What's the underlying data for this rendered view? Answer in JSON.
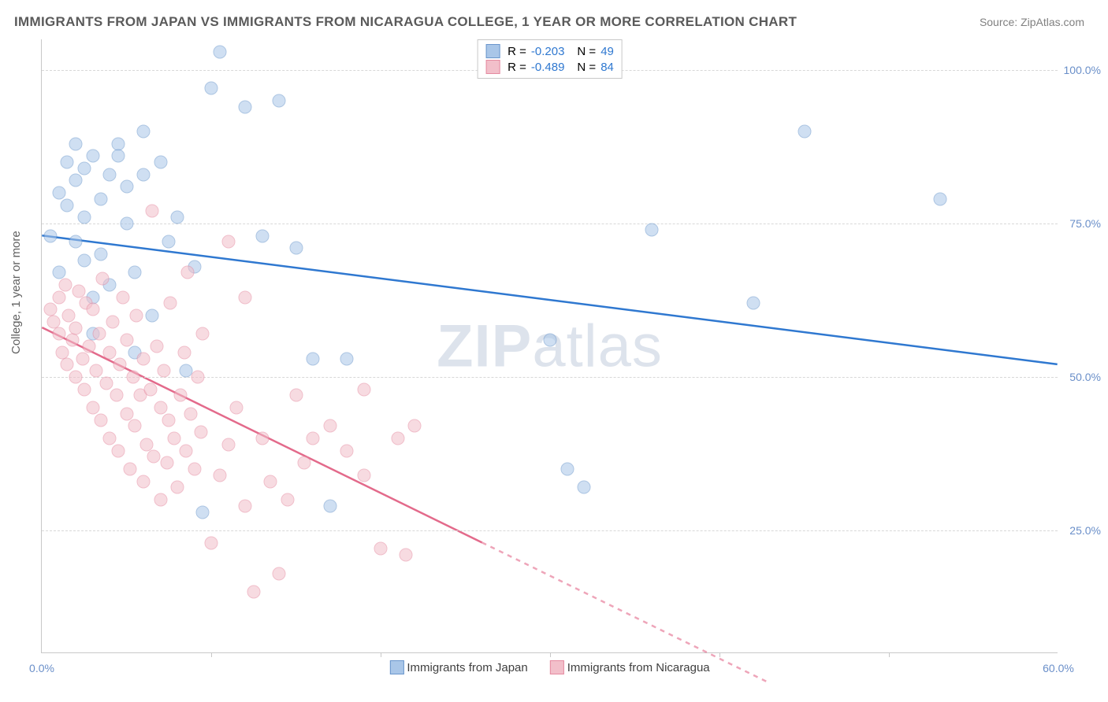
{
  "title": "IMMIGRANTS FROM JAPAN VS IMMIGRANTS FROM NICARAGUA COLLEGE, 1 YEAR OR MORE CORRELATION CHART",
  "source": "Source: ZipAtlas.com",
  "watermark_bold": "ZIP",
  "watermark_rest": "atlas",
  "ylabel": "College, 1 year or more",
  "chart": {
    "type": "scatter",
    "xlim": [
      0,
      60
    ],
    "ylim": [
      5,
      105
    ],
    "ytick_labels": [
      "25.0%",
      "50.0%",
      "75.0%",
      "100.0%"
    ],
    "ytick_vals": [
      25,
      50,
      75,
      100
    ],
    "xtick_labels": [
      "0.0%",
      "60.0%"
    ],
    "xtick_vals": [
      0,
      60
    ],
    "xtick_minor": [
      10,
      20,
      30,
      40,
      50
    ],
    "ytick_color": "#6a8fc9",
    "xtick_color": "#6a8fc9",
    "grid_color": "#d8d8d8",
    "background_color": "#ffffff",
    "marker_radius": 8.5,
    "series": [
      {
        "name": "Immigrants from Japan",
        "fill": "#a9c6e8",
        "stroke": "#6a96cc",
        "line_color": "#2f78d0",
        "line_width": 2.5,
        "R": "-0.203",
        "N": "49",
        "trend": {
          "x1": 0,
          "y1": 73,
          "x2": 60,
          "y2": 52,
          "dash_from_x": null
        },
        "points": [
          [
            0.5,
            73
          ],
          [
            1,
            80
          ],
          [
            1,
            67
          ],
          [
            1.5,
            85
          ],
          [
            1.5,
            78
          ],
          [
            2,
            72
          ],
          [
            2,
            82
          ],
          [
            2,
            88
          ],
          [
            2.5,
            69
          ],
          [
            2.5,
            76
          ],
          [
            2.5,
            84
          ],
          [
            3,
            86
          ],
          [
            3,
            63
          ],
          [
            3,
            57
          ],
          [
            3.5,
            70
          ],
          [
            3.5,
            79
          ],
          [
            4,
            83
          ],
          [
            4,
            65
          ],
          [
            4.5,
            88
          ],
          [
            4.5,
            86
          ],
          [
            5,
            75
          ],
          [
            5,
            81
          ],
          [
            5.5,
            67
          ],
          [
            5.5,
            54
          ],
          [
            6,
            90
          ],
          [
            6,
            83
          ],
          [
            6.5,
            60
          ],
          [
            7,
            85
          ],
          [
            7.5,
            72
          ],
          [
            8,
            76
          ],
          [
            8.5,
            51
          ],
          [
            9,
            68
          ],
          [
            9.5,
            28
          ],
          [
            10,
            97
          ],
          [
            10.5,
            103
          ],
          [
            12,
            94
          ],
          [
            13,
            73
          ],
          [
            14,
            95
          ],
          [
            15,
            71
          ],
          [
            16,
            53
          ],
          [
            17,
            29
          ],
          [
            18,
            53
          ],
          [
            30,
            56
          ],
          [
            31,
            35
          ],
          [
            32,
            32
          ],
          [
            36,
            74
          ],
          [
            42,
            62
          ],
          [
            45,
            90
          ],
          [
            53,
            79
          ]
        ]
      },
      {
        "name": "Immigrants from Nicaragua",
        "fill": "#f2bfca",
        "stroke": "#e58aa0",
        "line_color": "#e36a8b",
        "line_width": 2.5,
        "R": "-0.489",
        "N": "84",
        "trend": {
          "x1": 0,
          "y1": 58,
          "x2": 43,
          "y2": 0,
          "dash_from_x": 26
        },
        "points": [
          [
            0.5,
            61
          ],
          [
            0.7,
            59
          ],
          [
            1,
            57
          ],
          [
            1,
            63
          ],
          [
            1.2,
            54
          ],
          [
            1.4,
            65
          ],
          [
            1.5,
            52
          ],
          [
            1.6,
            60
          ],
          [
            1.8,
            56
          ],
          [
            2,
            50
          ],
          [
            2,
            58
          ],
          [
            2.2,
            64
          ],
          [
            2.4,
            53
          ],
          [
            2.5,
            48
          ],
          [
            2.6,
            62
          ],
          [
            2.8,
            55
          ],
          [
            3,
            45
          ],
          [
            3,
            61
          ],
          [
            3.2,
            51
          ],
          [
            3.4,
            57
          ],
          [
            3.5,
            43
          ],
          [
            3.6,
            66
          ],
          [
            3.8,
            49
          ],
          [
            4,
            54
          ],
          [
            4,
            40
          ],
          [
            4.2,
            59
          ],
          [
            4.4,
            47
          ],
          [
            4.5,
            38
          ],
          [
            4.6,
            52
          ],
          [
            4.8,
            63
          ],
          [
            5,
            44
          ],
          [
            5,
            56
          ],
          [
            5.2,
            35
          ],
          [
            5.4,
            50
          ],
          [
            5.5,
            42
          ],
          [
            5.6,
            60
          ],
          [
            5.8,
            47
          ],
          [
            6,
            33
          ],
          [
            6,
            53
          ],
          [
            6.2,
            39
          ],
          [
            6.4,
            48
          ],
          [
            6.5,
            77
          ],
          [
            6.6,
            37
          ],
          [
            6.8,
            55
          ],
          [
            7,
            30
          ],
          [
            7,
            45
          ],
          [
            7.2,
            51
          ],
          [
            7.4,
            36
          ],
          [
            7.5,
            43
          ],
          [
            7.6,
            62
          ],
          [
            7.8,
            40
          ],
          [
            8,
            32
          ],
          [
            8.2,
            47
          ],
          [
            8.4,
            54
          ],
          [
            8.5,
            38
          ],
          [
            8.6,
            67
          ],
          [
            8.8,
            44
          ],
          [
            9,
            35
          ],
          [
            9.2,
            50
          ],
          [
            9.4,
            41
          ],
          [
            9.5,
            57
          ],
          [
            10,
            23
          ],
          [
            10.5,
            34
          ],
          [
            11,
            39
          ],
          [
            11,
            72
          ],
          [
            11.5,
            45
          ],
          [
            12,
            29
          ],
          [
            12,
            63
          ],
          [
            12.5,
            15
          ],
          [
            13,
            40
          ],
          [
            13.5,
            33
          ],
          [
            14,
            18
          ],
          [
            15,
            47
          ],
          [
            15.5,
            36
          ],
          [
            16,
            40
          ],
          [
            17,
            42
          ],
          [
            18,
            38
          ],
          [
            19,
            48
          ],
          [
            20,
            22
          ],
          [
            21,
            40
          ],
          [
            22,
            42
          ],
          [
            21.5,
            21
          ],
          [
            19,
            34
          ],
          [
            14.5,
            30
          ]
        ]
      }
    ]
  },
  "legend_top": {
    "r_label": "R =",
    "n_label": "N ="
  },
  "legend_bottom_labels": [
    "Immigrants from Japan",
    "Immigrants from Nicaragua"
  ]
}
